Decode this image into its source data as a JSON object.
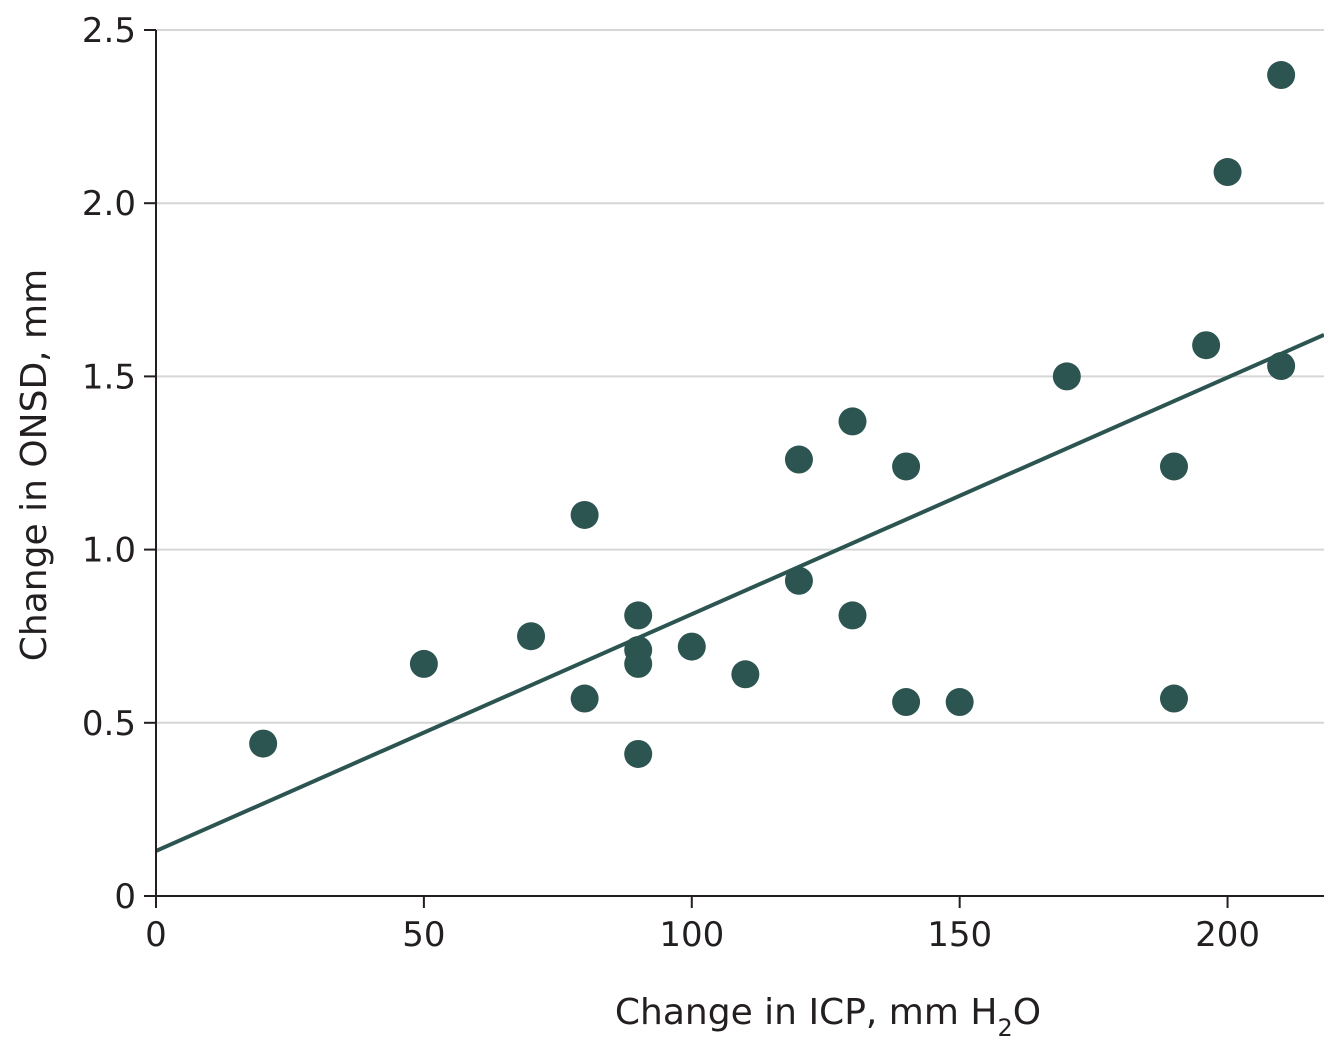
{
  "colors": {
    "marker": "#2c5551",
    "trend_line": "#2c5551",
    "gridline": "#d6d6d6",
    "axis": "#231f20",
    "text": "#231f20"
  },
  "chart_data": {
    "type": "scatter",
    "title": "",
    "xlabel": "Change in ICP, mm H",
    "xlabel_subscript": "2",
    "xlabel_suffix": "O",
    "ylabel": "Change in ONSD, mm",
    "xlim": [
      0,
      218
    ],
    "ylim": [
      0,
      2.5
    ],
    "xticks": [
      0,
      50,
      100,
      150,
      200
    ],
    "xtick_labels": [
      "0",
      "50",
      "100",
      "150",
      "200"
    ],
    "yticks": [
      0,
      0.5,
      1.0,
      1.5,
      2.0,
      2.5
    ],
    "ytick_labels": [
      "0",
      "0.5",
      "1.0",
      "1.5",
      "2.0",
      "2.5"
    ],
    "grid": "horizontal",
    "legend": "none",
    "points": [
      {
        "x": 20,
        "y": 0.44
      },
      {
        "x": 50,
        "y": 0.67
      },
      {
        "x": 70,
        "y": 0.75
      },
      {
        "x": 80,
        "y": 1.1
      },
      {
        "x": 80,
        "y": 0.57
      },
      {
        "x": 90,
        "y": 0.81
      },
      {
        "x": 90,
        "y": 0.71
      },
      {
        "x": 90,
        "y": 0.67
      },
      {
        "x": 90,
        "y": 0.41
      },
      {
        "x": 100,
        "y": 0.72
      },
      {
        "x": 110,
        "y": 0.64
      },
      {
        "x": 120,
        "y": 1.26
      },
      {
        "x": 120,
        "y": 0.91
      },
      {
        "x": 130,
        "y": 1.37
      },
      {
        "x": 130,
        "y": 0.81
      },
      {
        "x": 140,
        "y": 1.24
      },
      {
        "x": 140,
        "y": 0.56
      },
      {
        "x": 150,
        "y": 0.56
      },
      {
        "x": 170,
        "y": 1.5
      },
      {
        "x": 190,
        "y": 1.24
      },
      {
        "x": 190,
        "y": 0.57
      },
      {
        "x": 196,
        "y": 1.59
      },
      {
        "x": 200,
        "y": 2.09
      },
      {
        "x": 210,
        "y": 2.37
      },
      {
        "x": 210,
        "y": 1.53
      }
    ],
    "trend_line": {
      "x": [
        0,
        218
      ],
      "y": [
        0.13,
        1.62
      ]
    }
  }
}
